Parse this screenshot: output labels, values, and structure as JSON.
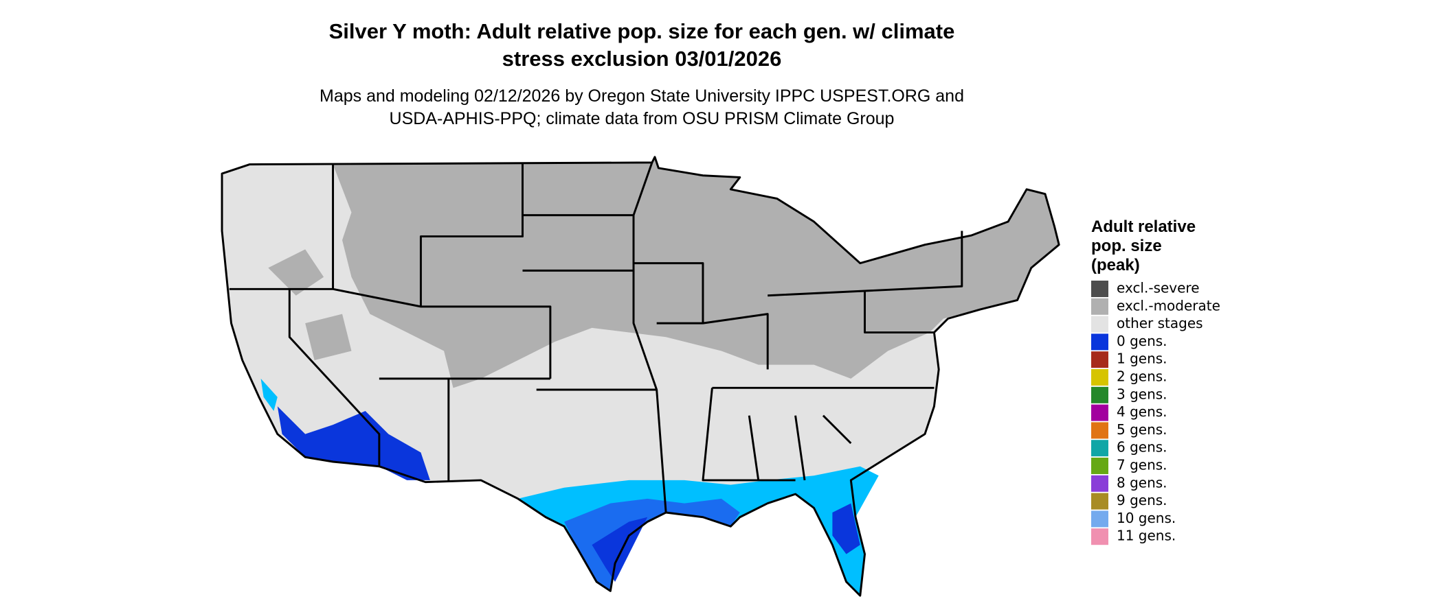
{
  "header": {
    "title": [
      "Silver Y moth: Adult relative pop. size for each gen. w/ climate",
      "stress exclusion 03/01/2026"
    ],
    "subtitle": [
      "Maps and modeling 02/12/2026 by Oregon State University IPPC USPEST.ORG and",
      "USDA-APHIS-PPQ; climate data from OSU PRISM Climate Group"
    ]
  },
  "legend": {
    "title": [
      "Adult relative",
      "pop. size",
      "(peak)"
    ],
    "items": [
      {
        "label": "excl.-severe",
        "color": "#4d4d4d"
      },
      {
        "label": "excl.-moderate",
        "color": "#b0b0b0"
      },
      {
        "label": "other stages",
        "color": "#e3e3e3"
      },
      {
        "label": "0 gens.",
        "color": "#0a36dc"
      },
      {
        "label": "1 gens.",
        "color": "#a62a1c"
      },
      {
        "label": "2 gens.",
        "color": "#d6c400"
      },
      {
        "label": "3 gens.",
        "color": "#24882a"
      },
      {
        "label": "4 gens.",
        "color": "#a2009e"
      },
      {
        "label": "5 gens.",
        "color": "#e07414"
      },
      {
        "label": "6 gens.",
        "color": "#10a6a6"
      },
      {
        "label": "7 gens.",
        "color": "#66a814"
      },
      {
        "label": "8 gens.",
        "color": "#8a3ed8"
      },
      {
        "label": "9 gens.",
        "color": "#a88c24"
      },
      {
        "label": "10 gens.",
        "color": "#74aaee"
      },
      {
        "label": "11 gens.",
        "color": "#f090b0"
      }
    ]
  }
}
